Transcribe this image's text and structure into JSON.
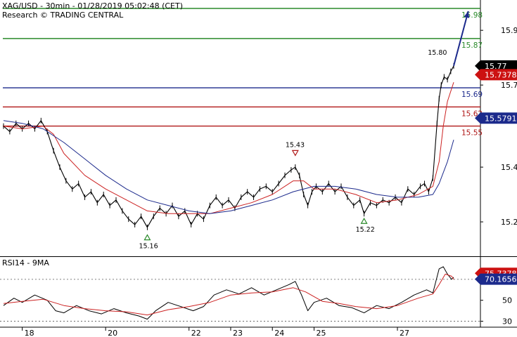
{
  "header": {
    "title": "XAG/USD - 30min - 01/28/2019 05:02:48 (CET)",
    "research": "Research © TRADING CENTRAL"
  },
  "rsi_panel": {
    "title": "RSI14 - 9MA"
  },
  "colors": {
    "price": "#000000",
    "ma_fast": "#cc2222",
    "ma_slow": "#1c2a8c",
    "resistance": "#2a8a2a",
    "pivot": "#1c2a8c",
    "support": "#b01818",
    "arrow": "#1c2a8c"
  },
  "chart_data": [
    {
      "type": "line",
      "panel": "price",
      "x_range": [
        17.55,
        28.35
      ],
      "ylim": [
        15.1,
        15.98
      ],
      "x_ticks": [
        {
          "x": 18,
          "label": "18"
        },
        {
          "x": 20,
          "label": "20"
        },
        {
          "x": 22,
          "label": "22"
        },
        {
          "x": 23,
          "label": "23"
        },
        {
          "x": 24,
          "label": "24"
        },
        {
          "x": 25,
          "label": "25"
        },
        {
          "x": 27,
          "label": "27"
        }
      ],
      "y_ticks": [
        15.2,
        15.4,
        15.7,
        15.9
      ],
      "y_tick_labels": [
        "15.2",
        "15.4",
        "15.7",
        "15.9"
      ],
      "series": [
        {
          "role": "price",
          "points": [
            [
              17.55,
              15.55
            ],
            [
              17.7,
              15.53
            ],
            [
              17.85,
              15.56
            ],
            [
              18.0,
              15.54
            ],
            [
              18.15,
              15.56
            ],
            [
              18.3,
              15.54
            ],
            [
              18.45,
              15.57
            ],
            [
              18.6,
              15.53
            ],
            [
              18.75,
              15.46
            ],
            [
              18.9,
              15.4
            ],
            [
              19.05,
              15.35
            ],
            [
              19.2,
              15.32
            ],
            [
              19.35,
              15.34
            ],
            [
              19.5,
              15.29
            ],
            [
              19.65,
              15.31
            ],
            [
              19.8,
              15.27
            ],
            [
              19.95,
              15.3
            ],
            [
              20.1,
              15.26
            ],
            [
              20.25,
              15.28
            ],
            [
              20.4,
              15.24
            ],
            [
              20.55,
              15.21
            ],
            [
              20.7,
              15.19
            ],
            [
              20.85,
              15.22
            ],
            [
              21.0,
              15.18
            ],
            [
              21.15,
              15.22
            ],
            [
              21.3,
              15.25
            ],
            [
              21.45,
              15.23
            ],
            [
              21.6,
              15.26
            ],
            [
              21.75,
              15.22
            ],
            [
              21.9,
              15.24
            ],
            [
              22.05,
              15.19
            ],
            [
              22.2,
              15.23
            ],
            [
              22.35,
              15.21
            ],
            [
              22.5,
              15.26
            ],
            [
              22.65,
              15.29
            ],
            [
              22.8,
              15.26
            ],
            [
              22.95,
              15.28
            ],
            [
              23.1,
              15.25
            ],
            [
              23.25,
              15.29
            ],
            [
              23.4,
              15.31
            ],
            [
              23.55,
              15.29
            ],
            [
              23.7,
              15.32
            ],
            [
              23.85,
              15.33
            ],
            [
              24.0,
              15.31
            ],
            [
              24.15,
              15.34
            ],
            [
              24.3,
              15.37
            ],
            [
              24.45,
              15.39
            ],
            [
              24.55,
              15.4
            ],
            [
              24.65,
              15.37
            ],
            [
              24.75,
              15.3
            ],
            [
              24.85,
              15.26
            ],
            [
              24.95,
              15.31
            ],
            [
              25.05,
              15.33
            ],
            [
              25.2,
              15.31
            ],
            [
              25.35,
              15.34
            ],
            [
              25.5,
              15.31
            ],
            [
              25.65,
              15.33
            ],
            [
              25.8,
              15.29
            ],
            [
              25.95,
              15.26
            ],
            [
              26.1,
              15.28
            ],
            [
              26.2,
              15.23
            ],
            [
              26.35,
              15.27
            ],
            [
              26.5,
              15.26
            ],
            [
              26.65,
              15.28
            ],
            [
              26.8,
              15.27
            ],
            [
              26.95,
              15.29
            ],
            [
              27.1,
              15.27
            ],
            [
              27.25,
              15.32
            ],
            [
              27.4,
              15.3
            ],
            [
              27.55,
              15.33
            ],
            [
              27.65,
              15.34
            ],
            [
              27.75,
              15.31
            ],
            [
              27.85,
              15.36
            ],
            [
              27.95,
              15.56
            ],
            [
              28.0,
              15.65
            ],
            [
              28.05,
              15.7
            ],
            [
              28.12,
              15.73
            ],
            [
              28.2,
              15.72
            ],
            [
              28.28,
              15.75
            ],
            [
              28.35,
              15.77
            ]
          ]
        },
        {
          "role": "ma_fast",
          "points": [
            [
              17.55,
              15.55
            ],
            [
              18.0,
              15.54
            ],
            [
              18.5,
              15.55
            ],
            [
              18.75,
              15.52
            ],
            [
              19.0,
              15.45
            ],
            [
              19.5,
              15.37
            ],
            [
              20.0,
              15.32
            ],
            [
              20.5,
              15.28
            ],
            [
              21.0,
              15.24
            ],
            [
              21.5,
              15.23
            ],
            [
              22.0,
              15.23
            ],
            [
              22.5,
              15.23
            ],
            [
              23.0,
              15.25
            ],
            [
              23.5,
              15.27
            ],
            [
              24.0,
              15.3
            ],
            [
              24.5,
              15.35
            ],
            [
              24.75,
              15.35
            ],
            [
              25.0,
              15.32
            ],
            [
              25.5,
              15.32
            ],
            [
              26.0,
              15.3
            ],
            [
              26.5,
              15.27
            ],
            [
              27.0,
              15.28
            ],
            [
              27.5,
              15.3
            ],
            [
              27.85,
              15.33
            ],
            [
              28.0,
              15.42
            ],
            [
              28.1,
              15.55
            ],
            [
              28.2,
              15.64
            ],
            [
              28.35,
              15.71
            ]
          ]
        },
        {
          "role": "ma_slow",
          "points": [
            [
              17.55,
              15.57
            ],
            [
              18.0,
              15.56
            ],
            [
              18.5,
              15.54
            ],
            [
              19.0,
              15.49
            ],
            [
              19.5,
              15.43
            ],
            [
              20.0,
              15.37
            ],
            [
              20.5,
              15.32
            ],
            [
              21.0,
              15.28
            ],
            [
              21.5,
              15.26
            ],
            [
              22.0,
              15.24
            ],
            [
              22.5,
              15.23
            ],
            [
              23.0,
              15.24
            ],
            [
              23.5,
              15.26
            ],
            [
              24.0,
              15.28
            ],
            [
              24.5,
              15.31
            ],
            [
              25.0,
              15.33
            ],
            [
              25.5,
              15.33
            ],
            [
              26.0,
              15.32
            ],
            [
              26.5,
              15.3
            ],
            [
              27.0,
              15.29
            ],
            [
              27.5,
              15.29
            ],
            [
              27.85,
              15.3
            ],
            [
              28.0,
              15.34
            ],
            [
              28.2,
              15.42
            ],
            [
              28.35,
              15.5
            ]
          ]
        }
      ],
      "levels": [
        {
          "value": 15.98,
          "label": "15.98",
          "role": "resistance"
        },
        {
          "value": 15.87,
          "label": "15.87",
          "role": "resistance"
        },
        {
          "value": 15.69,
          "label": "15.69",
          "role": "pivot"
        },
        {
          "value": 15.62,
          "label": "15.62",
          "role": "support"
        },
        {
          "value": 15.55,
          "label": "15.55",
          "role": "support"
        }
      ],
      "annotations": [
        {
          "x": 24.55,
          "y": 15.43,
          "label": "15.43",
          "marker": "down"
        },
        {
          "x": 21.0,
          "y": 15.16,
          "label": "15.16",
          "marker": "up"
        },
        {
          "x": 26.2,
          "y": 15.22,
          "label": "15.22",
          "marker": "up"
        },
        {
          "x": 28.0,
          "y": 15.8,
          "label": "15.80",
          "marker": "none"
        }
      ],
      "projection": {
        "from": [
          28.35,
          15.77
        ],
        "to": [
          28.7,
          15.97
        ]
      },
      "price_tags": [
        {
          "value": 15.77,
          "label": "15.77",
          "style": "black"
        },
        {
          "value": 15.7378,
          "label": "15.7378",
          "style": "red"
        },
        {
          "value": 15.5791,
          "label": "15.5791",
          "style": "blue"
        }
      ]
    },
    {
      "type": "line",
      "panel": "rsi",
      "title": "RSI14 - 9MA",
      "ylim": [
        25,
        90
      ],
      "y_ticks": [
        30,
        50
      ],
      "y_tick_labels": [
        "30",
        "50"
      ],
      "guide_lines": [
        70,
        30
      ],
      "series": [
        {
          "role": "rsi",
          "points": [
            [
              17.55,
              45
            ],
            [
              17.8,
              52
            ],
            [
              18.0,
              48
            ],
            [
              18.3,
              55
            ],
            [
              18.6,
              50
            ],
            [
              18.8,
              40
            ],
            [
              19.0,
              38
            ],
            [
              19.3,
              45
            ],
            [
              19.6,
              40
            ],
            [
              19.9,
              37
            ],
            [
              20.2,
              42
            ],
            [
              20.5,
              38
            ],
            [
              20.8,
              35
            ],
            [
              21.0,
              32
            ],
            [
              21.2,
              40
            ],
            [
              21.5,
              48
            ],
            [
              21.8,
              44
            ],
            [
              22.1,
              40
            ],
            [
              22.35,
              44
            ],
            [
              22.6,
              55
            ],
            [
              22.9,
              60
            ],
            [
              23.2,
              56
            ],
            [
              23.5,
              62
            ],
            [
              23.8,
              55
            ],
            [
              24.1,
              60
            ],
            [
              24.4,
              65
            ],
            [
              24.55,
              68
            ],
            [
              24.7,
              55
            ],
            [
              24.85,
              40
            ],
            [
              25.0,
              48
            ],
            [
              25.3,
              52
            ],
            [
              25.6,
              45
            ],
            [
              25.9,
              43
            ],
            [
              26.2,
              38
            ],
            [
              26.5,
              45
            ],
            [
              26.8,
              42
            ],
            [
              27.1,
              48
            ],
            [
              27.4,
              55
            ],
            [
              27.7,
              60
            ],
            [
              27.85,
              57
            ],
            [
              28.0,
              80
            ],
            [
              28.1,
              82
            ],
            [
              28.2,
              75
            ],
            [
              28.3,
              70
            ],
            [
              28.35,
              72
            ]
          ]
        },
        {
          "role": "ma_fast",
          "points": [
            [
              17.55,
              47
            ],
            [
              18.0,
              49
            ],
            [
              18.5,
              51
            ],
            [
              19.0,
              45
            ],
            [
              19.5,
              42
            ],
            [
              20.0,
              40
            ],
            [
              20.5,
              39
            ],
            [
              21.0,
              36
            ],
            [
              21.5,
              41
            ],
            [
              22.0,
              44
            ],
            [
              22.5,
              48
            ],
            [
              23.0,
              55
            ],
            [
              23.5,
              57
            ],
            [
              24.0,
              58
            ],
            [
              24.5,
              62
            ],
            [
              24.8,
              58
            ],
            [
              25.2,
              49
            ],
            [
              25.6,
              47
            ],
            [
              26.0,
              44
            ],
            [
              26.5,
              42
            ],
            [
              27.0,
              45
            ],
            [
              27.5,
              52
            ],
            [
              27.85,
              56
            ],
            [
              28.0,
              65
            ],
            [
              28.15,
              75
            ],
            [
              28.3,
              73
            ],
            [
              28.35,
              70
            ]
          ]
        }
      ],
      "price_tags": [
        {
          "value": 75.7378,
          "label": "75.7378",
          "style": "red"
        },
        {
          "value": 70.1656,
          "label": "70.1656",
          "style": "blue"
        }
      ]
    }
  ]
}
